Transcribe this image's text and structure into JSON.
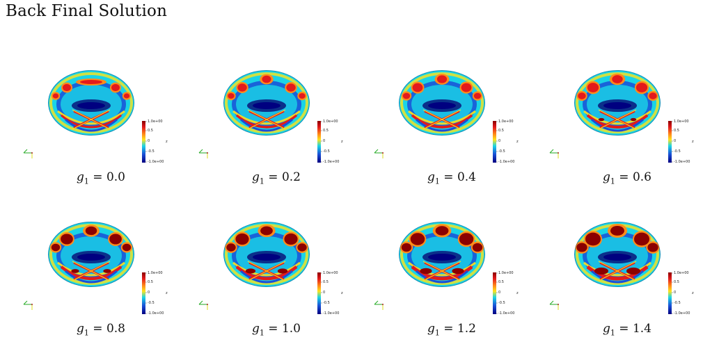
{
  "title": "Back Final Solution",
  "colorbar": {
    "max_label": "1.0e+00",
    "ticks": [
      "0.5",
      "0",
      "-0.5"
    ],
    "min_label": "-1.0e+00",
    "side_label": "z"
  },
  "colors": {
    "deep_red": "#8b0000",
    "red": "#e31a1c",
    "orange": "#ff8c1a",
    "yellow": "#ffe21a",
    "cyan": "#1ad4e6",
    "blue": "#1a4fd6",
    "deep_blue": "#000080"
  },
  "panels": [
    {
      "var": "g",
      "sub": "1",
      "eq": "=",
      "value": "0.0",
      "intensity": 0.0
    },
    {
      "var": "g",
      "sub": "1",
      "eq": "=",
      "value": "0.2",
      "intensity": 0.2
    },
    {
      "var": "g",
      "sub": "1",
      "eq": "=",
      "value": "0.4",
      "intensity": 0.4
    },
    {
      "var": "g",
      "sub": "1",
      "eq": "=",
      "value": "0.6",
      "intensity": 0.6
    },
    {
      "var": "g",
      "sub": "1",
      "eq": "=",
      "value": "0.8",
      "intensity": 0.8
    },
    {
      "var": "g",
      "sub": "1",
      "eq": "=",
      "value": "1.0",
      "intensity": 1.0
    },
    {
      "var": "g",
      "sub": "1",
      "eq": "=",
      "value": "1.2",
      "intensity": 1.2
    },
    {
      "var": "g",
      "sub": "1",
      "eq": "=",
      "value": "1.4",
      "intensity": 1.4
    }
  ]
}
